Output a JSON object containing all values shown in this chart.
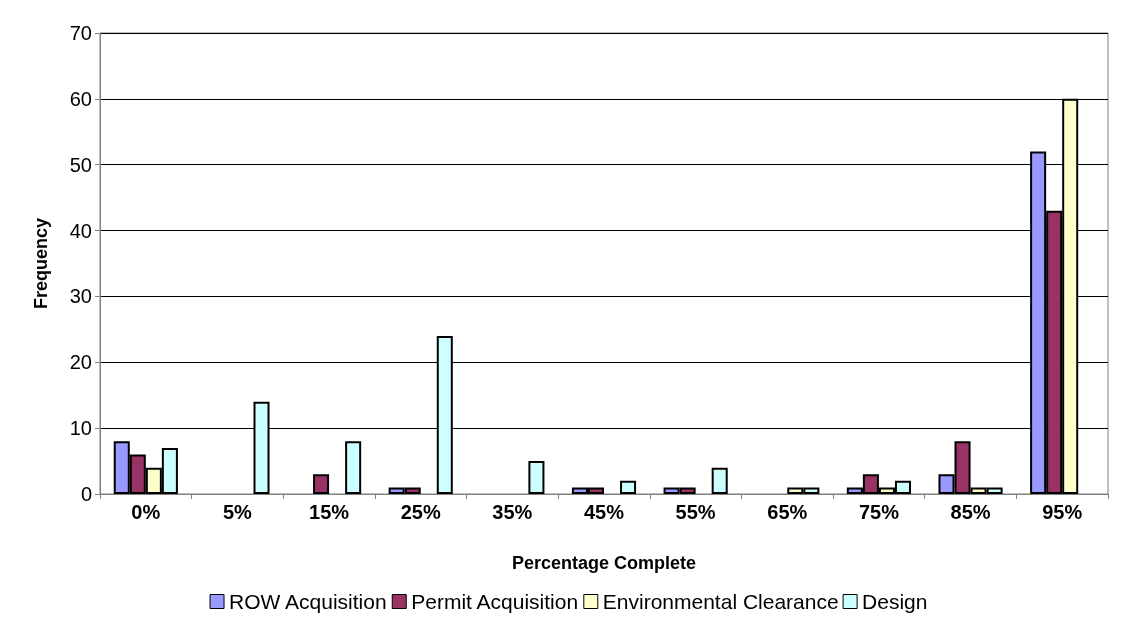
{
  "chart_data": {
    "type": "bar",
    "xlabel": "Percentage Complete",
    "ylabel": "Frequency",
    "categories": [
      "0%",
      "5%",
      "15%",
      "25%",
      "35%",
      "45%",
      "55%",
      "65%",
      "75%",
      "85%",
      "95%"
    ],
    "series": [
      {
        "name": "ROW Acquisition",
        "color": "#9999ff",
        "values": [
          8,
          0,
          0,
          1,
          0,
          1,
          1,
          0,
          1,
          3,
          52
        ]
      },
      {
        "name": "Permit Acquisition",
        "color": "#993366",
        "values": [
          6,
          0,
          3,
          1,
          0,
          1,
          1,
          0,
          3,
          8,
          43
        ]
      },
      {
        "name": "Environmental Clearance",
        "color": "#ffffcc",
        "values": [
          4,
          0,
          0,
          0,
          0,
          0,
          0,
          1,
          1,
          1,
          60
        ]
      },
      {
        "name": "Design",
        "color": "#ccffff",
        "values": [
          7,
          14,
          8,
          24,
          5,
          2,
          4,
          1,
          2,
          1,
          0
        ]
      }
    ],
    "ylim": [
      0,
      70
    ],
    "yticks": [
      0,
      10,
      20,
      30,
      40,
      50,
      60,
      70
    ],
    "grid": "y",
    "legend": "bottom"
  }
}
